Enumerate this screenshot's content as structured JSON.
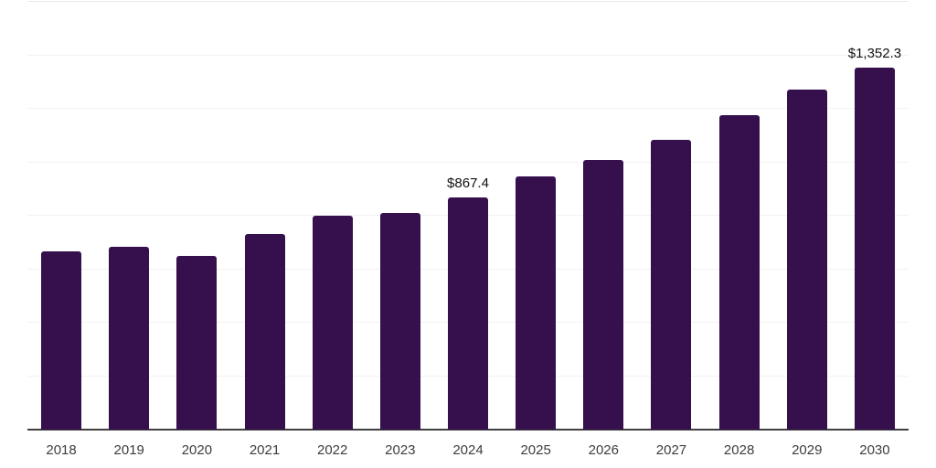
{
  "chart_data": {
    "type": "bar",
    "title": "",
    "xlabel": "",
    "ylabel": "",
    "categories": [
      "2018",
      "2019",
      "2020",
      "2021",
      "2022",
      "2023",
      "2024",
      "2025",
      "2026",
      "2027",
      "2028",
      "2029",
      "2030"
    ],
    "values": [
      667,
      684,
      648,
      732,
      800,
      810,
      867.4,
      947,
      1008,
      1084,
      1176,
      1272,
      1352.3
    ],
    "bar_labels": [
      "",
      "",
      "",
      "",
      "",
      "",
      "$867.4",
      "",
      "",
      "",
      "",
      "",
      "$1,352.3"
    ],
    "ylim": [
      0,
      1600
    ],
    "grid_step": 200,
    "grid": "horizontal-only",
    "legend_position": "none",
    "y_tick_labels_visible": false,
    "colors": {
      "bar": "#36104d",
      "axis_line": "#3f3f3f",
      "gridline": "#f2f2f2",
      "top_gridline": "#e9e9e9",
      "tick_label": "#3d3d3d",
      "data_label": "#111111",
      "background": "#ffffff"
    }
  }
}
